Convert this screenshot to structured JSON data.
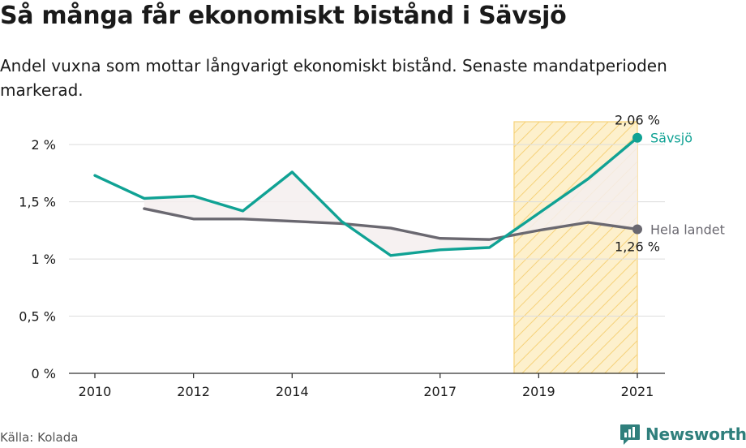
{
  "title": "Så många får ekonomiskt bistånd i Sävsjö",
  "subtitle": "Andel vuxna som mottar långvarigt ekonomiskt bistånd. Senaste mandatperioden markerad.",
  "source": "Källa: Kolada",
  "brand": "Newsworthy",
  "colors": {
    "savsjo": "#10a294",
    "riket": "#6a6870",
    "highlight_fill": "#fdf0cc",
    "highlight_hatch": "#f6d27a",
    "between_fill": "#f5efee",
    "grid": "#dcdcdc",
    "brand": "#2f7f7c"
  },
  "chart_data": {
    "type": "line",
    "xlim": [
      2010,
      2021
    ],
    "ylim": [
      0,
      2.2
    ],
    "x_ticks": [
      {
        "value": 2010,
        "label": "2010"
      },
      {
        "value": 2012,
        "label": "2012"
      },
      {
        "value": 2014,
        "label": "2014"
      },
      {
        "value": 2017,
        "label": "2017"
      },
      {
        "value": 2019,
        "label": "2019"
      },
      {
        "value": 2021,
        "label": "2021"
      }
    ],
    "y_ticks": [
      {
        "value": 0,
        "label": "0 %"
      },
      {
        "value": 0.5,
        "label": "0,5 %"
      },
      {
        "value": 1,
        "label": "1 %"
      },
      {
        "value": 1.5,
        "label": "1,5 %"
      },
      {
        "value": 2,
        "label": "2 %"
      }
    ],
    "grid": true,
    "highlight_period": [
      2018.5,
      2021
    ],
    "series": [
      {
        "name": "Sävsjö",
        "key": "savsjo",
        "x": [
          2010,
          2011,
          2012,
          2013,
          2014,
          2015,
          2016,
          2017,
          2018,
          2019,
          2020,
          2021
        ],
        "values": [
          1.73,
          1.53,
          1.55,
          1.42,
          1.76,
          1.33,
          1.03,
          1.08,
          1.1,
          1.4,
          1.7,
          2.06
        ],
        "end_label": "2,06 %"
      },
      {
        "name": "Hela landet",
        "key": "riket",
        "x": [
          2011,
          2012,
          2013,
          2014,
          2015,
          2016,
          2017,
          2018,
          2019,
          2020,
          2021
        ],
        "values": [
          1.44,
          1.35,
          1.35,
          1.33,
          1.31,
          1.27,
          1.18,
          1.17,
          1.25,
          1.32,
          1.26
        ],
        "end_label": "1,26 %"
      }
    ]
  }
}
